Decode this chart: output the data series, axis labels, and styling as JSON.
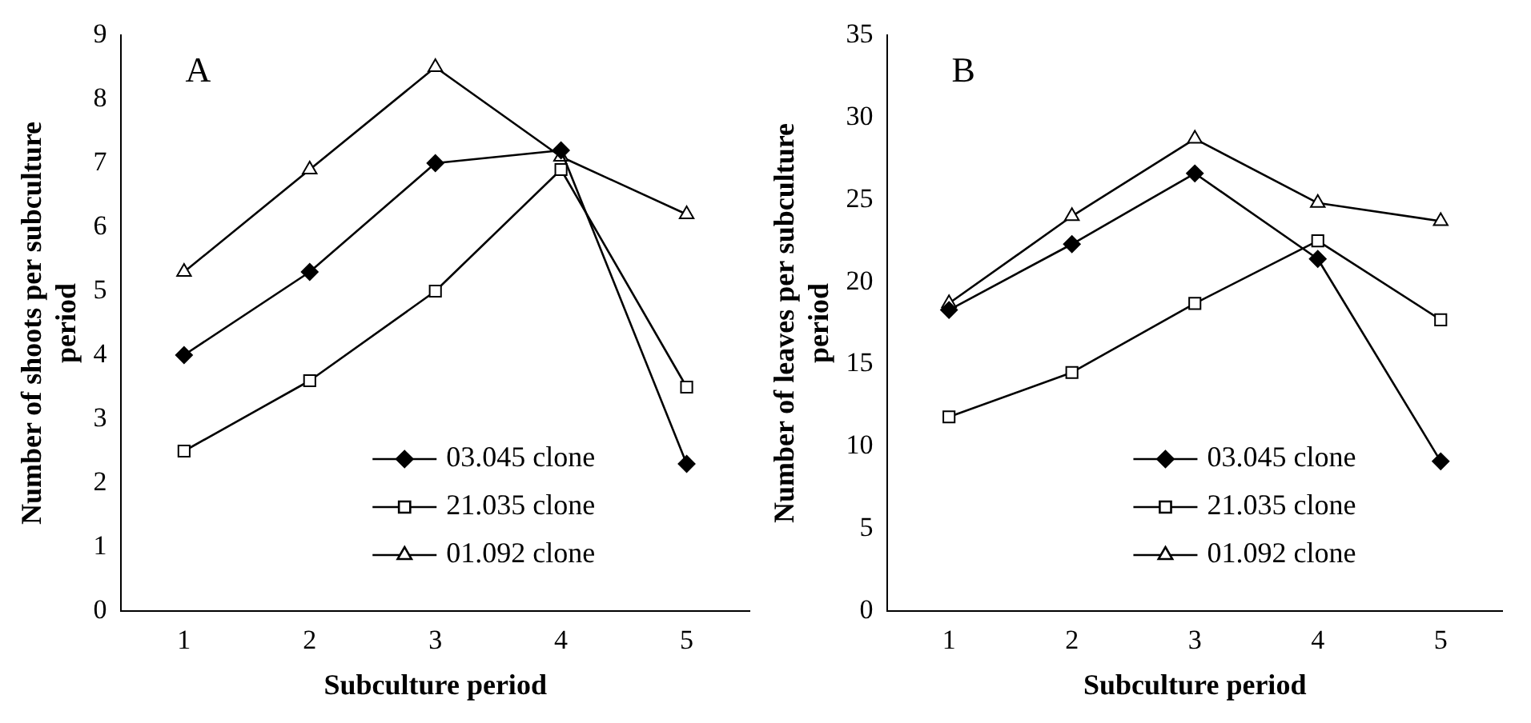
{
  "chart_data": [
    {
      "type": "line",
      "categories": [
        "1",
        "2",
        "3",
        "4",
        "5"
      ],
      "xlabel": "Subculture period",
      "ylabel": "Number of shoots per subculture period",
      "ylim": [
        0,
        9
      ],
      "yticks": [
        0,
        1,
        2,
        3,
        4,
        5,
        6,
        7,
        8,
        9
      ],
      "grid": false,
      "legend": "bottom right",
      "annotations": [
        "A"
      ],
      "series": [
        {
          "name": "03.045 clone",
          "color": "#000000",
          "marker": "diamond",
          "values": [
            4.0,
            5.3,
            7.0,
            7.2,
            2.3
          ]
        },
        {
          "name": "21.035 clone",
          "color": "#000000",
          "marker": "square",
          "values": [
            2.5,
            3.6,
            5.0,
            6.9,
            3.5
          ]
        },
        {
          "name": "01.092 clone",
          "color": "#000000",
          "marker": "triangle",
          "values": [
            5.3,
            6.9,
            8.5,
            7.1,
            6.2
          ]
        }
      ]
    },
    {
      "type": "line",
      "categories": [
        "1",
        "2",
        "3",
        "4",
        "5"
      ],
      "xlabel": "Subculture period",
      "ylabel": "Number of leaves per subculture period",
      "ylim": [
        0,
        35
      ],
      "yticks": [
        0,
        5,
        10,
        15,
        20,
        25,
        30,
        35
      ],
      "grid": false,
      "legend": "bottom right",
      "annotations": [
        "B"
      ],
      "series": [
        {
          "name": "03.045 clone",
          "color": "#000000",
          "marker": "diamond",
          "values": [
            18.3,
            22.3,
            26.6,
            21.4,
            9.1
          ]
        },
        {
          "name": "21.035 clone",
          "color": "#000000",
          "marker": "square",
          "values": [
            11.8,
            14.5,
            18.7,
            22.5,
            17.7
          ]
        },
        {
          "name": "01.092 clone",
          "color": "#000000",
          "marker": "triangle",
          "values": [
            18.7,
            24.0,
            28.7,
            24.8,
            23.7
          ]
        }
      ]
    }
  ]
}
